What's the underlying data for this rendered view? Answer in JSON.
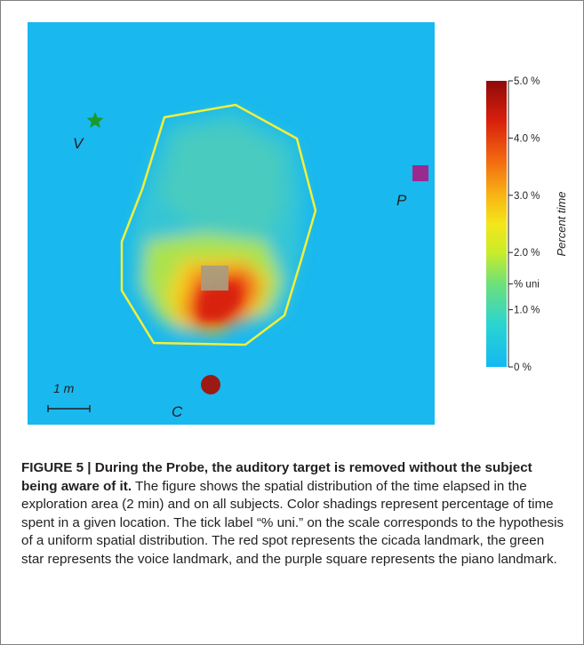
{
  "figure": {
    "landmarks": {
      "voice": {
        "label": "V",
        "shape": "star",
        "color": "#1a9a2a"
      },
      "piano": {
        "label": "P",
        "shape": "square",
        "color": "#9b2a8f"
      },
      "cicada": {
        "label": "C",
        "shape": "circle",
        "color": "#9b1b14"
      }
    },
    "scale_bar": {
      "label": "1 m"
    },
    "colors": {
      "background_field": "#19b8ee",
      "boundary": "#f2ef3a",
      "probe_square": "#a89c80"
    },
    "colorbar": {
      "title": "Percent time",
      "ticks": [
        {
          "label": "5.0 %",
          "value": 5.0
        },
        {
          "label": "4.0 %",
          "value": 4.0
        },
        {
          "label": "3.0 %",
          "value": 3.0
        },
        {
          "label": "2.0 %",
          "value": 2.0
        },
        {
          "label": "% uni",
          "value": 1.45
        },
        {
          "label": "1.0 %",
          "value": 1.0
        },
        {
          "label": "0 %",
          "value": 0.0
        }
      ],
      "range": [
        0,
        5
      ]
    }
  },
  "caption": {
    "heading": "FIGURE 5 | During the Probe, the auditory target is removed without the subject being aware of it.",
    "body": " The figure shows the spatial distribution of the time elapsed in the exploration area (2 min) and on all subjects. Color shadings represent percentage of time spent in a given location. The tick label “% uni.” on the scale corresponds to the hypothesis of a uniform spatial distribution. The red spot represents the cicada landmark, the green star represents the voice landmark, and the purple square represents the piano landmark."
  }
}
